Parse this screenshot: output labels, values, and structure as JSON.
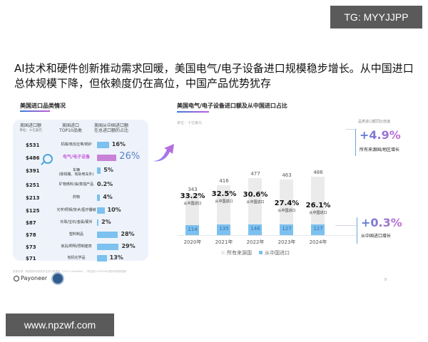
{
  "watermark_top": "TG: MYYJJPP",
  "watermark_bottom": "www.npzwf.com",
  "headline": "AI技术和硬件创新推动需求回暖，美国电气/电子设备进口规模稳步增长。从中国进口总体规模下降，但依赖度仍在高位，中国产品优势犹存",
  "left_panel": {
    "title": "美国进口品类情况",
    "col1_header": "美国进口额",
    "col1_unit": "单位：十亿美元",
    "col2_header": "美国进口\nTOP10品类",
    "col3_header": "美国从中国进口额\n在总进口额的占比",
    "rows": [
      {
        "value": "$531",
        "category": "机械/核反应堆/锅炉",
        "share": "16%",
        "share_num": 16,
        "highlight": false
      },
      {
        "value": "$486",
        "category": "电气/电子设备",
        "share": "26%",
        "share_num": 26,
        "highlight": true
      },
      {
        "value": "$391",
        "category": "车辆\n(除铁路、有轨电车外)",
        "share": "5%",
        "share_num": 5,
        "highlight": false
      },
      {
        "value": "$251",
        "category": "矿物燃料/油/蒸馏产品",
        "share": "0.2%",
        "share_num": 0.2,
        "highlight": false
      },
      {
        "value": "$213",
        "category": "药物",
        "share": "4%",
        "share_num": 4,
        "highlight": false
      },
      {
        "value": "$125",
        "category": "光学/照相/技术/医疗器械",
        "share": "10%",
        "share_num": 10,
        "highlight": false
      },
      {
        "value": "$87",
        "category": "珍珠/宝石/金属/硬币",
        "share": "2%",
        "share_num": 2,
        "highlight": false
      },
      {
        "value": "$78",
        "category": "塑料制品",
        "share": "28%",
        "share_num": 28,
        "highlight": false
      },
      {
        "value": "$73",
        "category": "家具/照明/预制建筑",
        "share": "29%",
        "share_num": 29,
        "highlight": false
      },
      {
        "value": "$71",
        "category": "有机化学品",
        "share": "13%",
        "share_num": 13,
        "highlight": false
      }
    ]
  },
  "right_panel": {
    "title": "美国电气/电子设备进口额及从中国进口占比",
    "unit": "单位：十亿美元",
    "share_sublabel": "从中国进口",
    "kpi_caption": "品类进口额同比增速",
    "kpis": [
      {
        "value": "+4.9%",
        "label": "所有来源国/地区增长"
      },
      {
        "value": "+0.3%",
        "label": "从中国进口增长"
      }
    ]
  },
  "chart_data": [
    {
      "type": "bar",
      "title": "美国进口品类情况",
      "categories": [
        "机械/核反应堆/锅炉",
        "电气/电子设备",
        "车辆",
        "矿物燃料/油/蒸馏产品",
        "药物",
        "光学/照相/技术/医疗器械",
        "珍珠/宝石/金属/硬币",
        "塑料制品",
        "家具/照明/预制建筑",
        "有机化学品"
      ],
      "series": [
        {
          "name": "美国进口额(十亿美元)",
          "values": [
            531,
            486,
            391,
            251,
            213,
            125,
            87,
            78,
            73,
            71
          ]
        },
        {
          "name": "美国从中国进口额在总进口额的占比(%)",
          "values": [
            16,
            26,
            5,
            0.2,
            4,
            10,
            2,
            28,
            29,
            13
          ]
        }
      ]
    },
    {
      "type": "bar",
      "title": "美国电气/电子设备进口额及从中国进口占比",
      "ylabel": "十亿美元",
      "categories": [
        "2020年",
        "2021年",
        "2022年",
        "2023年",
        "2024年"
      ],
      "series": [
        {
          "name": "所有来源国",
          "values": [
            343,
            416,
            477,
            463,
            486
          ]
        },
        {
          "name": "从中国进口",
          "values": [
            114,
            135,
            146,
            127,
            127
          ]
        }
      ],
      "share_from_china": [
        "33.2%",
        "32.5%",
        "30.6%",
        "27.4%",
        "26.1%"
      ],
      "legend": [
        "所有来源国",
        "从中国进口"
      ],
      "legend_position": "bottom",
      "annotations": [
        "+4.9% 所有来源国/地区增长",
        "+0.3% 从中国进口增长"
      ]
    }
  ],
  "legend": {
    "all": "所有来源国",
    "china": "从中国进口"
  },
  "colors": {
    "china_bar": "#7cc1ef",
    "total_bar": "#ebebeb",
    "highlight": "#c883d6",
    "accent_blue": "#5a7fd0",
    "accent_purple": "#c46bd4"
  },
  "footer": {
    "source": "数据来源：美国国际贸易委员会统计数据库（USITC DataWeb）；联合国COMTRADE国际贸易数据库",
    "logo": "Payoneer",
    "page": "8"
  }
}
